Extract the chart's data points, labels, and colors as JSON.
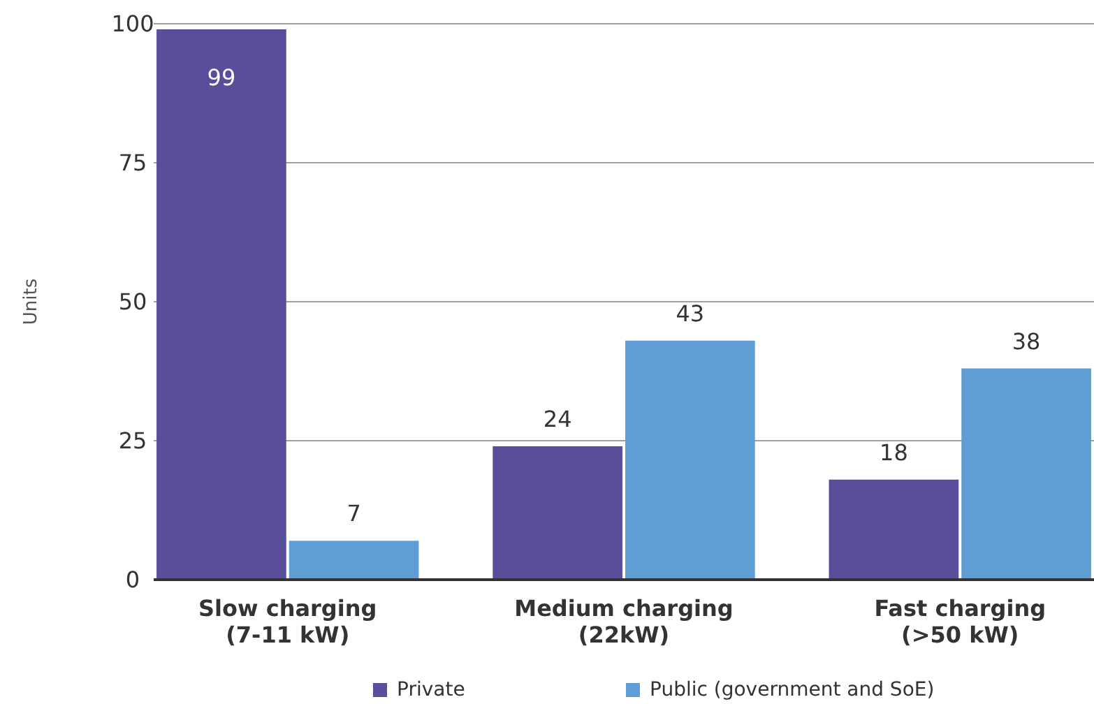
{
  "chart_data": {
    "type": "bar",
    "ylabel": "Units",
    "categories": [
      "Slow charging (7-11 kW)",
      "Medium charging (22kW)",
      "Fast charging (>50 kW)"
    ],
    "series": [
      {
        "name": "Private",
        "color": "#584e9b",
        "values": [
          99,
          24,
          18
        ]
      },
      {
        "name": "Public (government and SoE)",
        "color": "#5f9ed4",
        "values": [
          7,
          43,
          38
        ]
      }
    ],
    "ylim": [
      0,
      100
    ],
    "yticks": [
      0,
      25,
      50,
      75,
      100
    ],
    "grid": "y",
    "data_labels": true,
    "legend": "bottom"
  }
}
